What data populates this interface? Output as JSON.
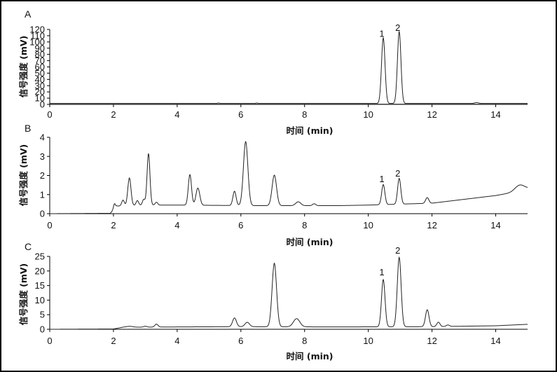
{
  "chart_data": [
    {
      "type": "line",
      "panel_label": "A",
      "xlabel": "时间 (min)",
      "ylabel": "信号强度 (mV)",
      "xlim": [
        0,
        15
      ],
      "ylim": [
        0,
        120
      ],
      "xticks": [
        0,
        2,
        4,
        6,
        8,
        10,
        12,
        14
      ],
      "yticks": [
        0,
        10,
        20,
        30,
        40,
        50,
        60,
        70,
        80,
        90,
        100,
        110,
        120
      ],
      "baseline": 1.5,
      "peaks": [
        {
          "t": 5.3,
          "h": 0.8,
          "w": 0.03
        },
        {
          "t": 6.5,
          "h": 0.8,
          "w": 0.03
        },
        {
          "t": 10.47,
          "h": 105,
          "w": 0.055,
          "label": "1"
        },
        {
          "t": 10.97,
          "h": 115,
          "w": 0.055,
          "label": "2"
        },
        {
          "t": 13.4,
          "h": 1.5,
          "w": 0.06
        }
      ],
      "annotations": [
        {
          "text": "1",
          "x": 10.47,
          "y": 108
        },
        {
          "text": "2",
          "x": 10.97,
          "y": 118
        }
      ]
    },
    {
      "type": "line",
      "panel_label": "B",
      "xlabel": "时间 (min)",
      "ylabel": "信号强度 (mV)",
      "xlim": [
        0,
        15
      ],
      "ylim": [
        0,
        4
      ],
      "xticks": [
        0,
        2,
        4,
        6,
        8,
        10,
        12,
        14
      ],
      "yticks": [
        0,
        1,
        2,
        3,
        4
      ],
      "baseline_points": [
        [
          0,
          0
        ],
        [
          1.9,
          0.02
        ],
        [
          2.1,
          0.4
        ],
        [
          3.0,
          0.45
        ],
        [
          4.0,
          0.45
        ],
        [
          6.5,
          0.42
        ],
        [
          9.0,
          0.42
        ],
        [
          10.0,
          0.45
        ],
        [
          12.0,
          0.55
        ],
        [
          13.0,
          0.75
        ],
        [
          14.0,
          0.95
        ],
        [
          14.5,
          1.1
        ],
        [
          15.0,
          1.3
        ]
      ],
      "peaks": [
        {
          "t": 2.03,
          "h": 0.25,
          "w": 0.03
        },
        {
          "t": 2.3,
          "h": 0.3,
          "w": 0.04
        },
        {
          "t": 2.5,
          "h": 1.45,
          "w": 0.05
        },
        {
          "t": 2.75,
          "h": 0.25,
          "w": 0.04
        },
        {
          "t": 2.95,
          "h": 0.3,
          "w": 0.04
        },
        {
          "t": 3.1,
          "h": 2.7,
          "w": 0.045
        },
        {
          "t": 3.35,
          "h": 0.15,
          "w": 0.04
        },
        {
          "t": 4.4,
          "h": 1.6,
          "w": 0.05
        },
        {
          "t": 4.65,
          "h": 0.9,
          "w": 0.06
        },
        {
          "t": 5.8,
          "h": 0.75,
          "w": 0.05
        },
        {
          "t": 6.15,
          "h": 3.35,
          "w": 0.07
        },
        {
          "t": 7.05,
          "h": 1.6,
          "w": 0.07
        },
        {
          "t": 7.8,
          "h": 0.2,
          "w": 0.08
        },
        {
          "t": 8.3,
          "h": 0.1,
          "w": 0.05
        },
        {
          "t": 10.47,
          "h": 1.05,
          "w": 0.05,
          "label": "1"
        },
        {
          "t": 10.97,
          "h": 1.35,
          "w": 0.05,
          "label": "2"
        },
        {
          "t": 11.85,
          "h": 0.3,
          "w": 0.05
        },
        {
          "t": 14.75,
          "h": 0.3,
          "w": 0.15
        }
      ],
      "annotations": [
        {
          "text": "1",
          "x": 10.47,
          "y": 1.65
        },
        {
          "text": "2",
          "x": 10.97,
          "y": 1.95
        }
      ]
    },
    {
      "type": "line",
      "panel_label": "C",
      "xlabel": "时间 (min)",
      "ylabel": "信号强度 (mV)",
      "xlim": [
        0,
        15
      ],
      "ylim": [
        0,
        25
      ],
      "xticks": [
        0,
        2,
        4,
        6,
        8,
        10,
        12,
        14
      ],
      "yticks": [
        0,
        5,
        10,
        15,
        20,
        25
      ],
      "baseline_points": [
        [
          0,
          0
        ],
        [
          2.0,
          0.1
        ],
        [
          2.3,
          0.7
        ],
        [
          4.0,
          0.8
        ],
        [
          6.0,
          0.9
        ],
        [
          9.0,
          0.8
        ],
        [
          12.0,
          0.9
        ],
        [
          14.0,
          1.2
        ],
        [
          15.0,
          1.7
        ]
      ],
      "peaks": [
        {
          "t": 2.5,
          "h": 0.3,
          "w": 0.1
        },
        {
          "t": 3.0,
          "h": 0.3,
          "w": 0.05
        },
        {
          "t": 3.35,
          "h": 1.0,
          "w": 0.05
        },
        {
          "t": 5.8,
          "h": 3.0,
          "w": 0.06
        },
        {
          "t": 6.2,
          "h": 1.5,
          "w": 0.07
        },
        {
          "t": 7.05,
          "h": 21.8,
          "w": 0.07
        },
        {
          "t": 7.75,
          "h": 2.8,
          "w": 0.1
        },
        {
          "t": 10.47,
          "h": 16.2,
          "w": 0.055,
          "label": "1"
        },
        {
          "t": 10.97,
          "h": 23.8,
          "w": 0.06,
          "label": "2"
        },
        {
          "t": 11.85,
          "h": 5.8,
          "w": 0.055
        },
        {
          "t": 12.2,
          "h": 1.5,
          "w": 0.05
        },
        {
          "t": 12.5,
          "h": 0.5,
          "w": 0.05
        }
      ],
      "annotations": [
        {
          "text": "1",
          "x": 10.47,
          "y": 18.5
        },
        {
          "text": "2",
          "x": 10.97,
          "y": 26.0
        }
      ]
    }
  ]
}
